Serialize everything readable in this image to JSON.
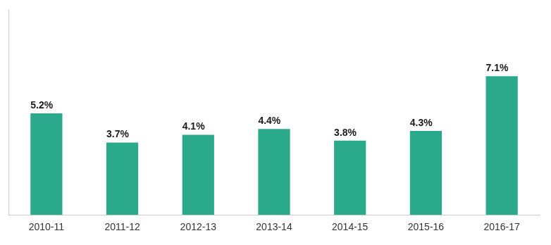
{
  "chart_data": {
    "type": "bar",
    "categories": [
      "2010-11",
      "2011-12",
      "2012-13",
      "2013-14",
      "2014-15",
      "2015-16",
      "2016-17"
    ],
    "values": [
      5.2,
      3.7,
      4.1,
      4.4,
      3.8,
      4.3,
      7.1
    ],
    "value_labels": [
      "5.2%",
      "3.7%",
      "4.1%",
      "4.4%",
      "3.8%",
      "4.3%",
      "7.1%"
    ],
    "data_labels": true,
    "color": "#2aaa8a",
    "ylim": [
      0,
      10.5
    ],
    "tick_labels": "x",
    "grid": false
  }
}
